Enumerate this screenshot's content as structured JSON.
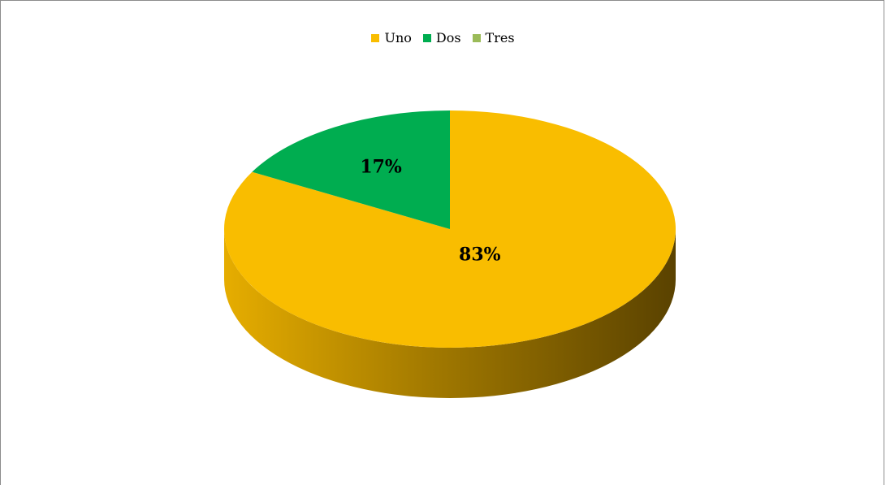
{
  "chart_data": {
    "type": "pie",
    "title": "",
    "categories": [
      "Uno",
      "Dos",
      "Tres"
    ],
    "values": [
      83,
      17,
      0
    ],
    "labels": [
      "83%",
      "17%",
      ""
    ],
    "colors": [
      "#f9bd00",
      "#00ad50",
      "#9bbb59"
    ],
    "legend_position": "top",
    "style": "3d"
  }
}
